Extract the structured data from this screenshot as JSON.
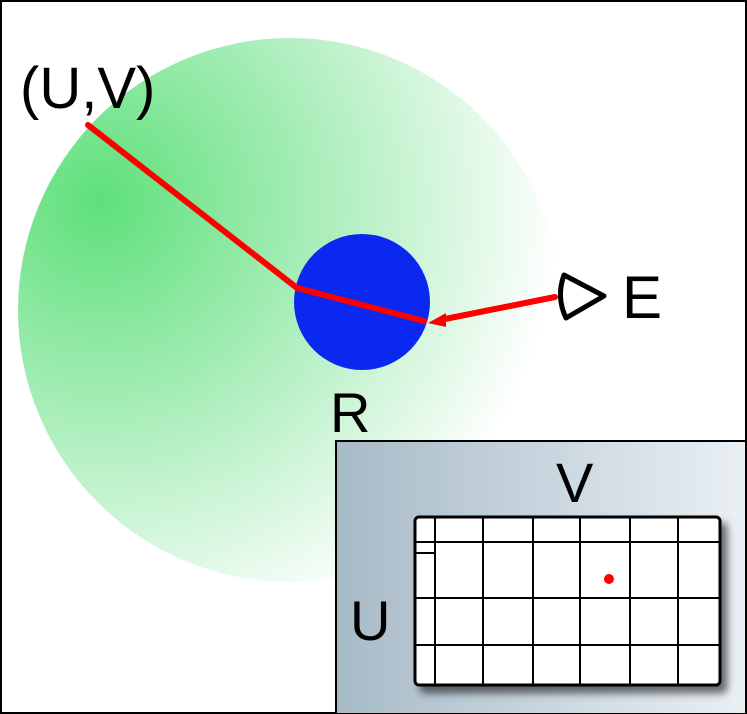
{
  "labels": {
    "uv": "(U,V)",
    "eye": "E",
    "sphere": "R",
    "v_axis": "V",
    "u_axis": "U"
  }
}
